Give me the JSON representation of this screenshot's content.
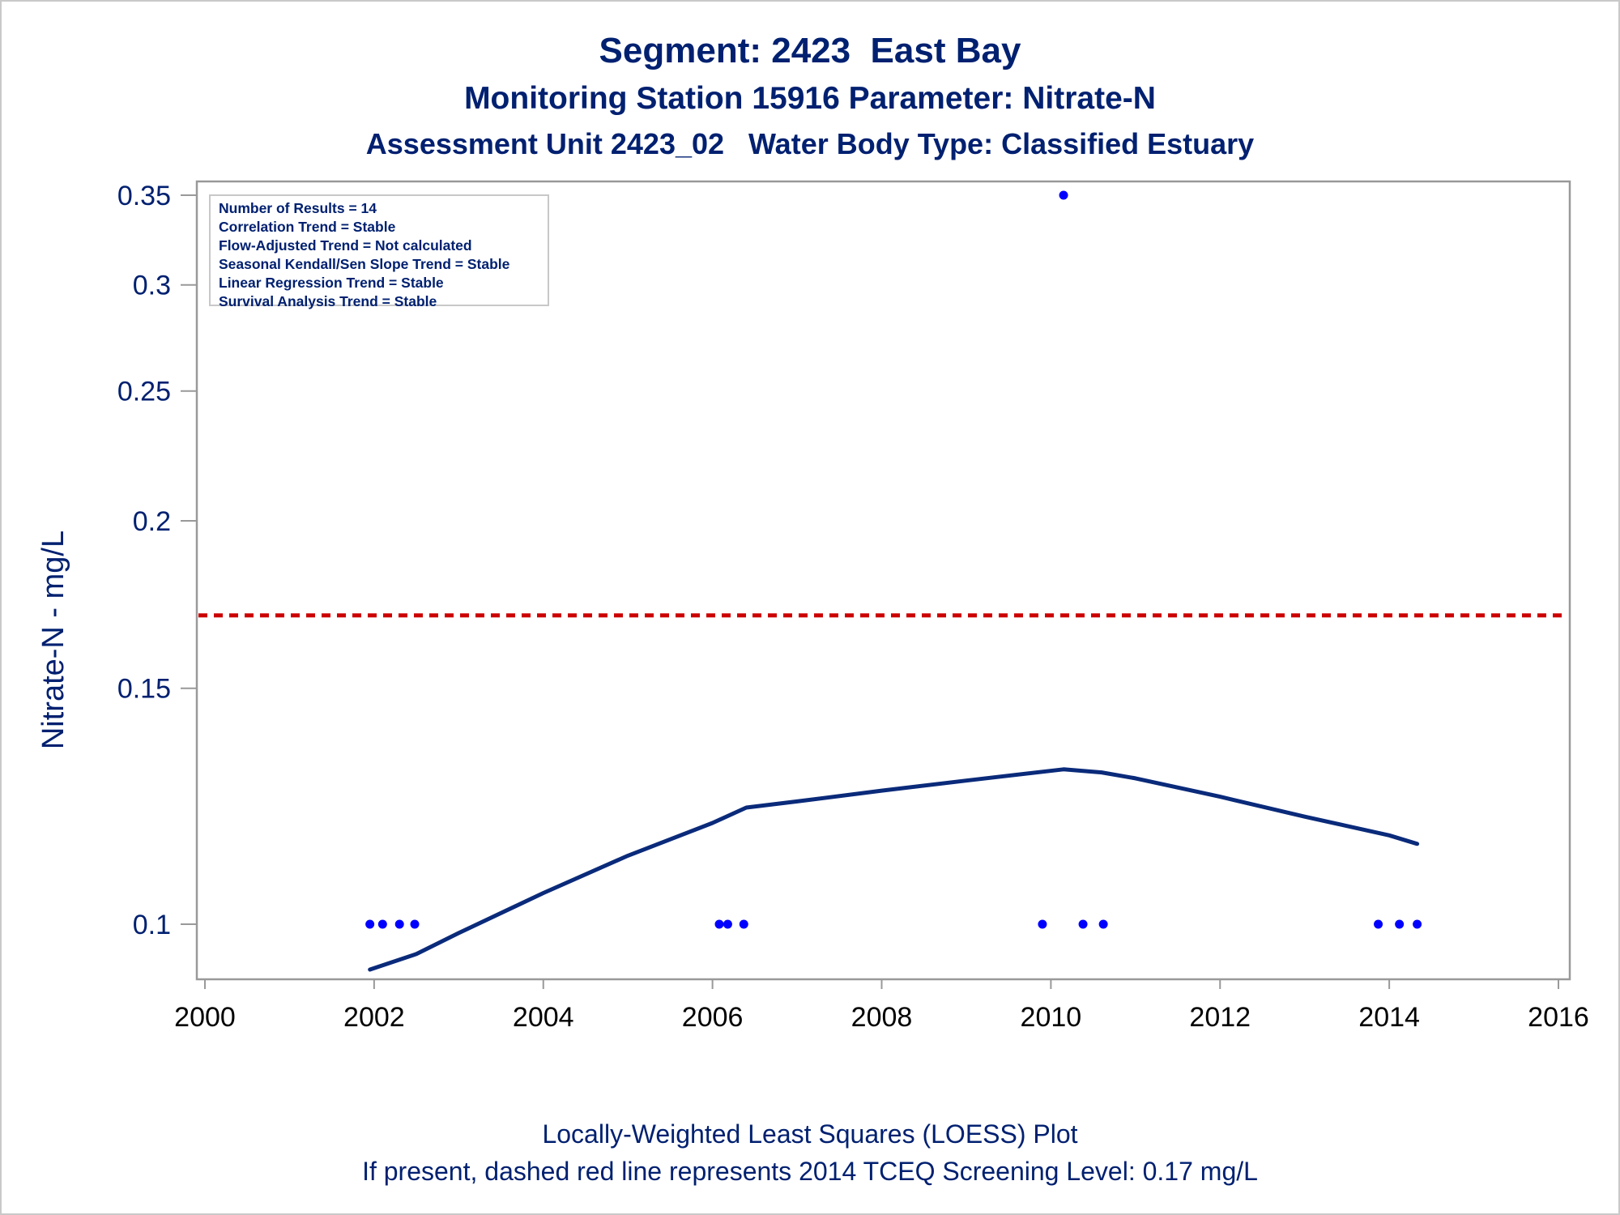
{
  "titles": {
    "line1": "Segment: 2423  East Bay",
    "line2": "Monitoring Station 15916 Parameter: Nitrate-N",
    "line3": "Assessment Unit 2423_02   Water Body Type: Classified Estuary"
  },
  "stats": [
    "Number of Results = 14",
    "Correlation Trend = Stable",
    "Flow-Adjusted Trend = Not calculated",
    "Seasonal Kendall/Sen Slope Trend = Stable",
    "Linear Regression Trend = Stable",
    "Survival Analysis Trend = Stable"
  ],
  "footnotes": {
    "line1": "Locally-Weighted Least Squares (LOESS) Plot",
    "line2": "If present, dashed red line represents 2014 TCEQ Screening Level: 0.17 mg/L"
  },
  "colors": {
    "text": "#002070",
    "points": "#0000ff",
    "loess": "#0a2a7a",
    "screening": "#cc0000",
    "axis": "#999999"
  },
  "chart_data": {
    "type": "scatter",
    "ylabel": "Nitrate-N - mg/L",
    "xlabel": "",
    "xlim": [
      2000,
      2016
    ],
    "ylim": [
      0.09,
      0.35
    ],
    "y_scale": "log",
    "x_ticks": [
      2000,
      2002,
      2004,
      2006,
      2008,
      2010,
      2012,
      2014,
      2016
    ],
    "x_tick_labels": [
      "2000",
      "2002",
      "2004",
      "2006",
      "2008",
      "2010",
      "2012",
      "2014",
      "2016"
    ],
    "y_ticks": [
      0.1,
      0.15,
      0.2,
      0.25,
      0.3,
      0.35
    ],
    "y_tick_labels": [
      "0.1",
      "0.15",
      "0.2",
      "0.25",
      "0.3",
      "0.35"
    ],
    "grid": false,
    "points": [
      {
        "x": 2001.95,
        "y": 0.1
      },
      {
        "x": 2002.1,
        "y": 0.1
      },
      {
        "x": 2002.3,
        "y": 0.1
      },
      {
        "x": 2002.48,
        "y": 0.1
      },
      {
        "x": 2006.08,
        "y": 0.1
      },
      {
        "x": 2006.18,
        "y": 0.1
      },
      {
        "x": 2006.37,
        "y": 0.1
      },
      {
        "x": 2009.9,
        "y": 0.1
      },
      {
        "x": 2010.15,
        "y": 0.35
      },
      {
        "x": 2010.38,
        "y": 0.1
      },
      {
        "x": 2010.62,
        "y": 0.1
      },
      {
        "x": 2013.87,
        "y": 0.1
      },
      {
        "x": 2014.12,
        "y": 0.1
      },
      {
        "x": 2014.33,
        "y": 0.1
      }
    ],
    "loess": [
      {
        "x": 2001.95,
        "y": 0.0925
      },
      {
        "x": 2002.5,
        "y": 0.095
      },
      {
        "x": 2003.0,
        "y": 0.0985
      },
      {
        "x": 2004.0,
        "y": 0.1055
      },
      {
        "x": 2005.0,
        "y": 0.1125
      },
      {
        "x": 2006.0,
        "y": 0.119
      },
      {
        "x": 2006.4,
        "y": 0.1222
      },
      {
        "x": 2007.0,
        "y": 0.1235
      },
      {
        "x": 2008.0,
        "y": 0.1258
      },
      {
        "x": 2009.0,
        "y": 0.128
      },
      {
        "x": 2010.15,
        "y": 0.1305
      },
      {
        "x": 2010.6,
        "y": 0.1298
      },
      {
        "x": 2011.0,
        "y": 0.1285
      },
      {
        "x": 2012.0,
        "y": 0.1245
      },
      {
        "x": 2013.0,
        "y": 0.1203
      },
      {
        "x": 2014.0,
        "y": 0.1165
      },
      {
        "x": 2014.33,
        "y": 0.1148
      }
    ],
    "screening_level": 0.17
  }
}
